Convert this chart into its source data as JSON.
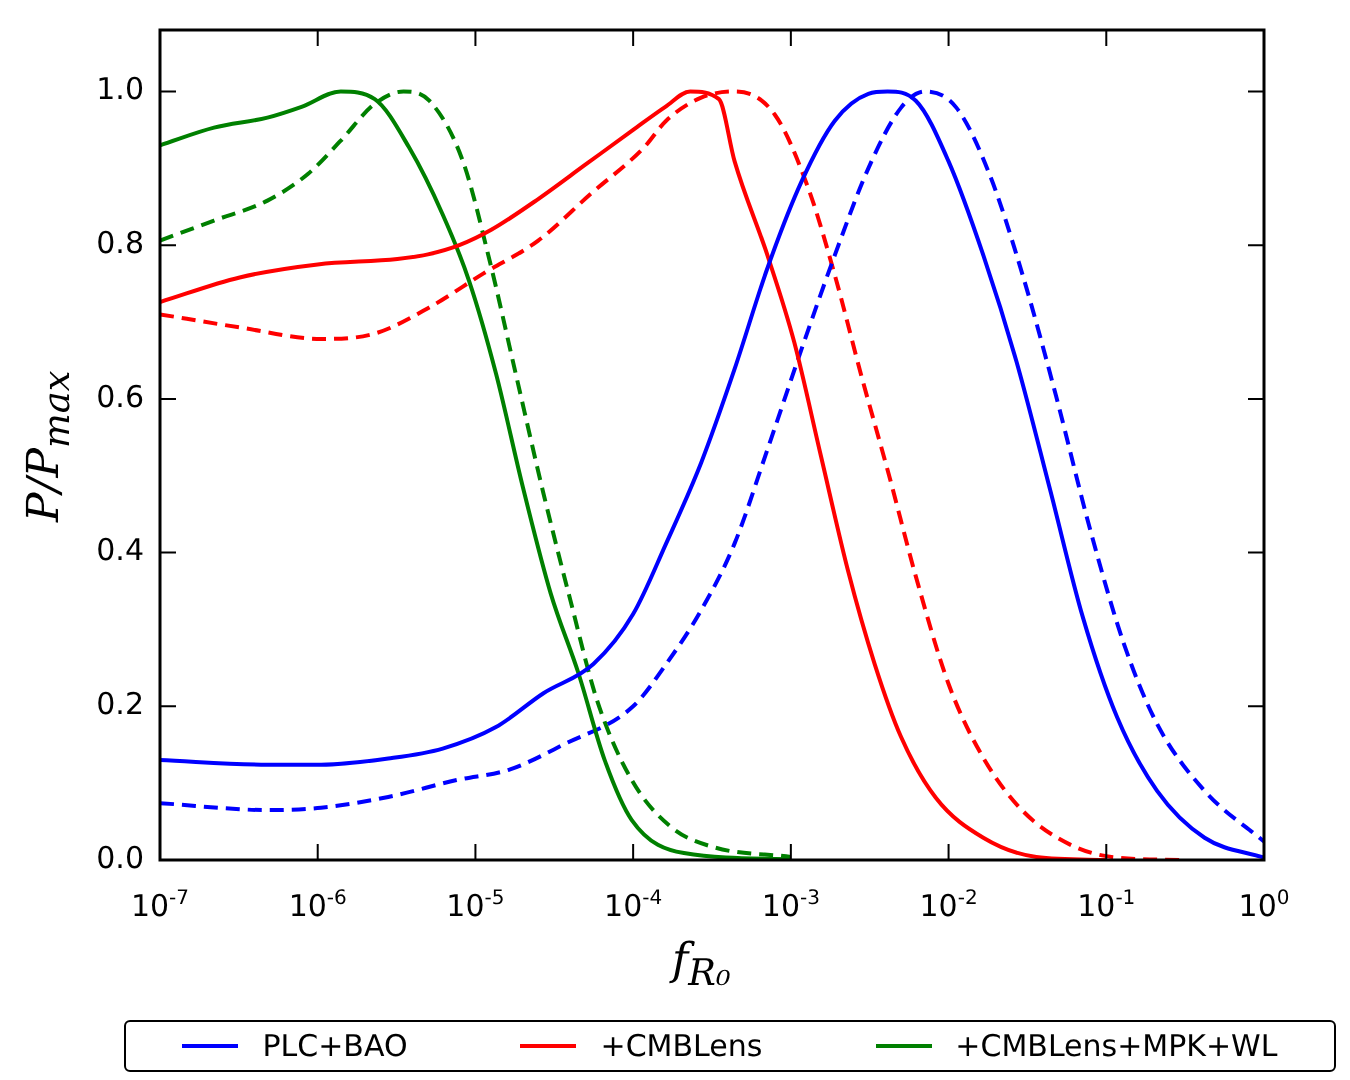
{
  "chart_data": {
    "type": "line",
    "xlabel": "f$_{R₀}$",
    "ylabel": "P/P$_{max}$",
    "log": "x",
    "xlim": [
      1e-07,
      1
    ],
    "ylim": [
      0,
      1.08
    ],
    "xticks": [
      {
        "value": 1e-07,
        "label": "10$^{-7}$"
      },
      {
        "value": 1e-06,
        "label": "10$^{-6}$"
      },
      {
        "value": 1e-05,
        "label": "10$^{-5}$"
      },
      {
        "value": 0.0001,
        "label": "10$^{-4}$"
      },
      {
        "value": 0.001,
        "label": "10$^{-3}$"
      },
      {
        "value": 0.01,
        "label": "10$^{-2}$"
      },
      {
        "value": 0.1,
        "label": "10$^{-1}$"
      },
      {
        "value": 1,
        "label": "10$^{0}$"
      }
    ],
    "yticks": [
      {
        "value": 0,
        "label": "0.0"
      },
      0.2,
      0.4,
      0.6,
      0.8,
      {
        "value": 1,
        "label": "1.0"
      }
    ],
    "grid": false,
    "legend": "bottom",
    "marker": "none",
    "series": [
      {
        "name": "PLC+BAO",
        "color": "#0000ff",
        "line_style": "solid",
        "x": [
          1e-07,
          4.8e-07,
          1.05e-06,
          2.8e-06,
          6.2e-06,
          1.35e-05,
          2.7e-05,
          5.6e-05,
          0.0001,
          0.000162,
          0.00027,
          0.00044,
          0.00071,
          0.00117,
          0.0019,
          0.0031,
          0.0041,
          0.0062,
          0.01,
          0.0166,
          0.027,
          0.044,
          0.071,
          0.117,
          0.21,
          0.42,
          1
        ],
        "values": [
          0.13,
          0.124,
          0.124,
          0.132,
          0.145,
          0.173,
          0.217,
          0.255,
          0.32,
          0.412,
          0.517,
          0.639,
          0.77,
          0.883,
          0.962,
          0.997,
          1.0,
          0.988,
          0.909,
          0.787,
          0.648,
          0.482,
          0.316,
          0.186,
          0.09,
          0.029,
          0.003
        ]
      },
      {
        "name": "+CMBLens",
        "color": "#ff0000",
        "line_style": "solid",
        "x": [
          1e-07,
          3.2e-07,
          1e-06,
          3.2e-06,
          5e-06,
          7.9e-06,
          1.26e-05,
          2.5e-05,
          5e-05,
          0.0001,
          0.00016,
          0.00023,
          0.00035,
          0.00044,
          0.00071,
          0.00105,
          0.00155,
          0.0023,
          0.0034,
          0.005,
          0.0083,
          0.0166,
          0.036,
          0.1
        ],
        "values": [
          0.726,
          0.758,
          0.775,
          0.782,
          0.788,
          0.8,
          0.82,
          0.86,
          0.905,
          0.95,
          0.98,
          1.0,
          0.99,
          0.909,
          0.787,
          0.674,
          0.526,
          0.377,
          0.255,
          0.16,
          0.081,
          0.029,
          0.004,
          0
        ]
      },
      {
        "name": "+CMBLens+MPK+WL",
        "color": "#008000",
        "line_style": "solid",
        "x": [
          1e-07,
          2.2e-07,
          4.8e-07,
          7.9e-07,
          1.4e-06,
          2.3e-06,
          3.8e-06,
          6.2e-06,
          9.1e-06,
          1.35e-05,
          2e-05,
          3e-05,
          4.5e-05,
          6.6e-05,
          9.8e-05,
          0.00021,
          0.001
        ],
        "values": [
          0.93,
          0.953,
          0.966,
          0.98,
          1.0,
          0.99,
          0.927,
          0.84,
          0.754,
          0.633,
          0.485,
          0.347,
          0.243,
          0.13,
          0.052,
          0.009,
          0.001
        ]
      },
      {
        "color": "#0000ff",
        "line_style": "dashed",
        "x": [
          1e-07,
          4.8e-07,
          1.05e-06,
          2.8e-06,
          7.6e-06,
          1.66e-05,
          3.6e-05,
          0.0001,
          0.000162,
          0.00027,
          0.00044,
          0.00071,
          0.00117,
          0.0019,
          0.0031,
          0.005,
          0.0071,
          0.0112,
          0.0182,
          0.0295,
          0.048,
          0.079,
          0.129,
          0.21,
          0.42,
          1
        ],
        "values": [
          0.074,
          0.065,
          0.068,
          0.082,
          0.104,
          0.118,
          0.15,
          0.2,
          0.255,
          0.325,
          0.412,
          0.534,
          0.665,
          0.787,
          0.9,
          0.979,
          1.0,
          0.979,
          0.892,
          0.761,
          0.604,
          0.43,
          0.282,
          0.177,
          0.09,
          0.024
        ]
      },
      {
        "color": "#ff0000",
        "line_style": "dashed",
        "x": [
          1e-07,
          3.2e-07,
          1.05e-06,
          2.3e-06,
          5.1e-06,
          1.12e-05,
          2.5e-05,
          5.4e-05,
          0.000117,
          0.000162,
          0.00027,
          0.00044,
          0.00079,
          0.00129,
          0.0019,
          0.0028,
          0.0042,
          0.0062,
          0.01,
          0.0166,
          0.0295,
          0.059,
          0.117,
          0.32
        ],
        "values": [
          0.71,
          0.693,
          0.678,
          0.685,
          0.719,
          0.763,
          0.806,
          0.867,
          0.927,
          0.962,
          0.992,
          1.0,
          0.97,
          0.874,
          0.761,
          0.63,
          0.5,
          0.369,
          0.229,
          0.133,
          0.064,
          0.02,
          0.003,
          0
        ]
      },
      {
        "color": "#008000",
        "line_style": "dashed",
        "x": [
          1e-07,
          2.2e-07,
          4.8e-07,
          8.7e-07,
          1.4e-06,
          2.3e-06,
          3.5e-06,
          5.1e-06,
          8.3e-06,
          1.23e-05,
          1.8e-05,
          2.7e-05,
          4e-05,
          5.9e-05,
          9.8e-05,
          0.000174,
          0.00032,
          0.001
        ],
        "values": [
          0.806,
          0.832,
          0.858,
          0.893,
          0.936,
          0.984,
          1.0,
          0.988,
          0.91,
          0.78,
          0.633,
          0.477,
          0.338,
          0.208,
          0.104,
          0.043,
          0.017,
          0.004
        ]
      }
    ]
  }
}
